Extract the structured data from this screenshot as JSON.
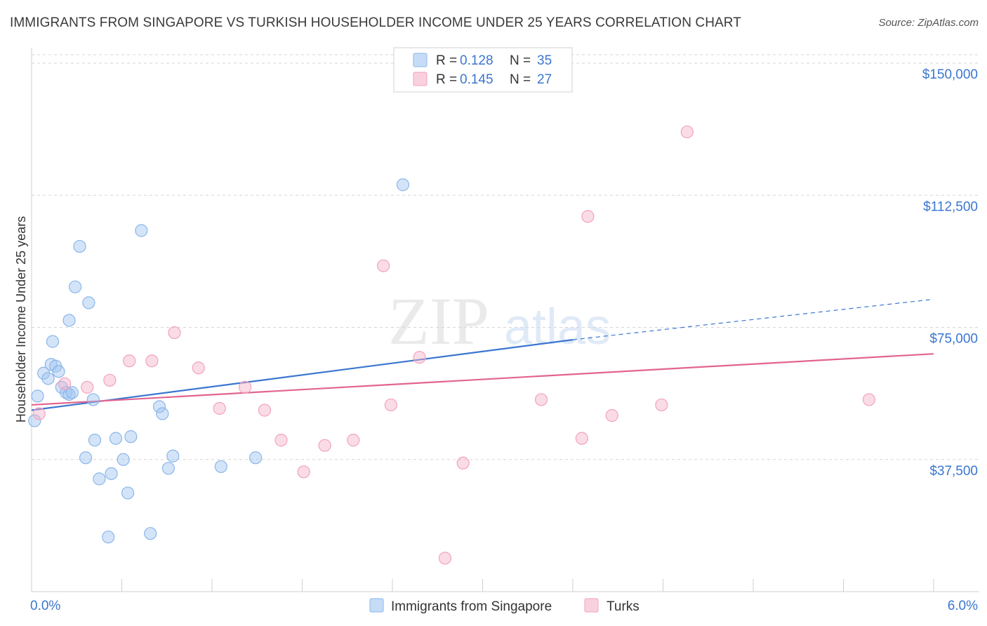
{
  "title": "IMMIGRANTS FROM SINGAPORE VS TURKISH HOUSEHOLDER INCOME UNDER 25 YEARS CORRELATION CHART",
  "source": "Source: ZipAtlas.com",
  "watermark": {
    "zip": "ZIP",
    "atlas": "atlas"
  },
  "colors": {
    "blue": "#8ab6ea",
    "blue_line": "#3a76d0",
    "pink": "#f2a3bc",
    "pink_line": "#e2648f",
    "tick_label": "#3a76d0",
    "grid": "#d5d5d5"
  },
  "legend": {
    "rows": [
      {
        "r_label": "R =",
        "r_value": "0.128",
        "n_label": "N =",
        "n_value": "35",
        "color": "blue"
      },
      {
        "r_label": "R =",
        "r_value": "0.145",
        "n_label": "N =",
        "n_value": "27",
        "color": "pink"
      }
    ]
  },
  "bottom_legend": [
    {
      "label": "Immigrants from Singapore",
      "color": "blue"
    },
    {
      "label": "Turks",
      "color": "pink"
    }
  ],
  "chart_data": {
    "type": "scatter",
    "title": "IMMIGRANTS FROM SINGAPORE VS TURKISH HOUSEHOLDER INCOME UNDER 25 YEARS CORRELATION CHART",
    "xlabel": "",
    "ylabel": "Householder Income Under 25 years",
    "xlim": [
      0,
      6
    ],
    "ylim": [
      0,
      153000
    ],
    "x_tick_labels": [
      {
        "value": 0,
        "label": "0.0%"
      },
      {
        "value": 6,
        "label": "6.0%"
      }
    ],
    "y_ticks": [
      {
        "value": 37500,
        "label": "$37,500"
      },
      {
        "value": 75000,
        "label": "$75,000"
      },
      {
        "value": 112500,
        "label": "$112,500"
      },
      {
        "value": 150000,
        "label": "$150,000"
      }
    ],
    "grid": true,
    "legend_position": "top-center",
    "series": [
      {
        "name": "Immigrants from Singapore",
        "color": "blue",
        "points": [
          [
            0.02,
            48500
          ],
          [
            0.04,
            55500
          ],
          [
            0.08,
            62000
          ],
          [
            0.11,
            60500
          ],
          [
            0.13,
            64500
          ],
          [
            0.16,
            64000
          ],
          [
            0.14,
            71000
          ],
          [
            0.18,
            62500
          ],
          [
            0.2,
            58000
          ],
          [
            0.23,
            56500
          ],
          [
            0.25,
            56000
          ],
          [
            0.27,
            56500
          ],
          [
            0.25,
            77000
          ],
          [
            0.29,
            86500
          ],
          [
            0.32,
            98000
          ],
          [
            0.38,
            82000
          ],
          [
            0.41,
            54500
          ],
          [
            0.42,
            43000
          ],
          [
            0.36,
            38000
          ],
          [
            0.45,
            32000
          ],
          [
            0.53,
            33500
          ],
          [
            0.56,
            43500
          ],
          [
            0.61,
            37500
          ],
          [
            0.64,
            28000
          ],
          [
            0.66,
            44000
          ],
          [
            0.73,
            102500
          ],
          [
            0.79,
            16500
          ],
          [
            0.85,
            52500
          ],
          [
            0.87,
            50500
          ],
          [
            0.91,
            35000
          ],
          [
            0.94,
            38500
          ],
          [
            1.26,
            35500
          ],
          [
            1.49,
            38000
          ],
          [
            2.47,
            115500
          ],
          [
            0.51,
            15500
          ]
        ],
        "trend": {
          "x0": 0,
          "y0": 51500,
          "x1": 3.6,
          "y1": 71500,
          "dash_x1": 6.0,
          "dash_y1": 83000
        }
      },
      {
        "name": "Turks",
        "color": "pink",
        "points": [
          [
            0.05,
            50500
          ],
          [
            0.22,
            59000
          ],
          [
            0.37,
            58000
          ],
          [
            0.52,
            60000
          ],
          [
            0.65,
            65500
          ],
          [
            0.8,
            65500
          ],
          [
            0.95,
            73500
          ],
          [
            1.11,
            63500
          ],
          [
            1.25,
            52000
          ],
          [
            1.42,
            58000
          ],
          [
            1.55,
            51500
          ],
          [
            1.66,
            43000
          ],
          [
            1.81,
            34000
          ],
          [
            1.95,
            41500
          ],
          [
            2.14,
            43000
          ],
          [
            2.34,
            92500
          ],
          [
            2.39,
            53000
          ],
          [
            2.58,
            66500
          ],
          [
            2.75,
            9500
          ],
          [
            2.87,
            36500
          ],
          [
            3.39,
            54500
          ],
          [
            3.66,
            43500
          ],
          [
            3.7,
            106500
          ],
          [
            3.86,
            50000
          ],
          [
            4.19,
            53000
          ],
          [
            4.36,
            130500
          ],
          [
            5.57,
            54500
          ]
        ],
        "trend": {
          "x0": 0,
          "y0": 53000,
          "x1": 6.0,
          "y1": 67500
        }
      }
    ]
  }
}
